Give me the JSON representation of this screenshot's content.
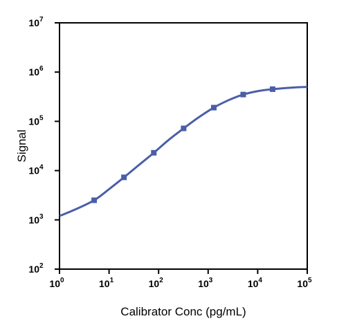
{
  "chart_data": {
    "type": "line",
    "title": "",
    "xlabel": "Calibrator Conc (pg/mL)",
    "ylabel": "Signal",
    "x_scale": "log",
    "y_scale": "log",
    "xlim": [
      1,
      100000
    ],
    "ylim": [
      100,
      10000000
    ],
    "x_ticks": [
      {
        "base": "10",
        "exp": "0"
      },
      {
        "base": "10",
        "exp": "1"
      },
      {
        "base": "10",
        "exp": "2"
      },
      {
        "base": "10",
        "exp": "3"
      },
      {
        "base": "10",
        "exp": "4"
      },
      {
        "base": "10",
        "exp": "5"
      }
    ],
    "y_ticks": [
      {
        "base": "10",
        "exp": "2"
      },
      {
        "base": "10",
        "exp": "3"
      },
      {
        "base": "10",
        "exp": "4"
      },
      {
        "base": "10",
        "exp": "5"
      },
      {
        "base": "10",
        "exp": "6"
      },
      {
        "base": "10",
        "exp": "7"
      }
    ],
    "grid": false,
    "series": [
      {
        "color": "#4a5ea8",
        "marker": "square",
        "points": [
          {
            "x": 5,
            "y": 2500
          },
          {
            "x": 20,
            "y": 7300
          },
          {
            "x": 80,
            "y": 23000
          },
          {
            "x": 320,
            "y": 72000
          },
          {
            "x": 1300,
            "y": 190000
          },
          {
            "x": 5100,
            "y": 350000
          },
          {
            "x": 20000,
            "y": 450000
          }
        ],
        "fit_curve": [
          {
            "x": 1,
            "y": 1200
          },
          {
            "x": 2,
            "y": 1600
          },
          {
            "x": 5,
            "y": 2500
          },
          {
            "x": 10,
            "y": 4200
          },
          {
            "x": 20,
            "y": 7300
          },
          {
            "x": 40,
            "y": 13000
          },
          {
            "x": 80,
            "y": 23000
          },
          {
            "x": 160,
            "y": 42000
          },
          {
            "x": 320,
            "y": 72000
          },
          {
            "x": 640,
            "y": 120000
          },
          {
            "x": 1300,
            "y": 190000
          },
          {
            "x": 2600,
            "y": 270000
          },
          {
            "x": 5100,
            "y": 350000
          },
          {
            "x": 10000,
            "y": 410000
          },
          {
            "x": 20000,
            "y": 450000
          },
          {
            "x": 50000,
            "y": 485000
          },
          {
            "x": 100000,
            "y": 500000
          }
        ]
      }
    ]
  }
}
